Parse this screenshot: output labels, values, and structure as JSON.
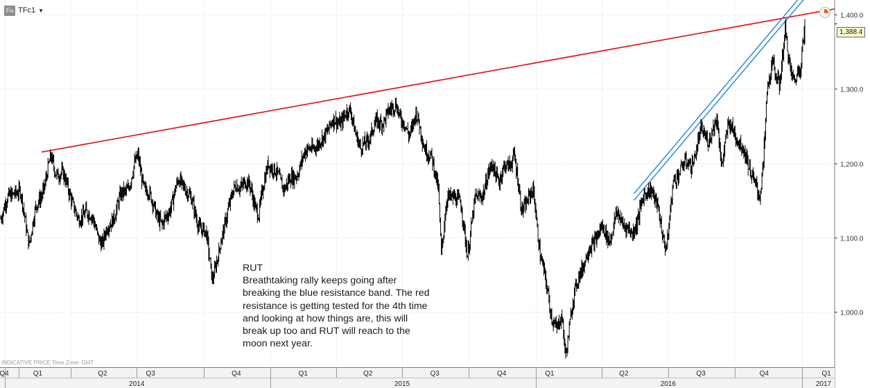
{
  "toolbar": {
    "symbol_icon": "Fu",
    "symbol": "TFc1",
    "dropdown_icon": "caret-down-icon",
    "clock_icon": "clock-icon"
  },
  "footer_note": "INDICATIVE PRICE   Time Zone: GMT",
  "annotation": {
    "title": "RUT",
    "lines": [
      "Breathtaking rally keeps going after",
      "breaking the blue resistance band. The red",
      "resistance is getting tested for the 4th time",
      "and looking at how things are, this will",
      "break up too and RUT will reach to the",
      "moon next year."
    ]
  },
  "colors": {
    "price": "#000000",
    "red_line": "#dd1f1f",
    "blue_band": "#3a8fd8",
    "grid": "#d9d9d9",
    "axis": "#444444"
  },
  "chart_data": {
    "type": "line",
    "title": "",
    "xlabel": "",
    "ylabel": "",
    "y_axis_side": "right",
    "ylim": [
      925,
      1420
    ],
    "y_ticks": [
      1000,
      1100,
      1200,
      1300,
      1400
    ],
    "y_tick_labels": [
      "1,000.0",
      "1,100.0",
      "1,200.0",
      "1,300.0",
      "1,400.0"
    ],
    "x_range": [
      "2013-12-25",
      "2017-02-15"
    ],
    "quarter_labels": [
      {
        "label": "Q4",
        "date": "2013-12-01"
      },
      {
        "label": "Q1",
        "date": "2014-02-15"
      },
      {
        "label": "Q2",
        "date": "2014-05-15"
      },
      {
        "label": "Q3",
        "date": "2014-07-20"
      },
      {
        "label": "Q4",
        "date": "2014-11-15"
      },
      {
        "label": "Q1",
        "date": "2015-02-15"
      },
      {
        "label": "Q2",
        "date": "2015-05-15"
      },
      {
        "label": "Q3",
        "date": "2015-08-15"
      },
      {
        "label": "Q4",
        "date": "2015-11-15"
      },
      {
        "label": "Q1",
        "date": "2016-01-20"
      },
      {
        "label": "Q2",
        "date": "2016-05-01"
      },
      {
        "label": "Q3",
        "date": "2016-08-15"
      },
      {
        "label": "Q4",
        "date": "2016-11-10"
      },
      {
        "label": "Q1",
        "date": "2017-02-15"
      }
    ],
    "year_labels": [
      {
        "label": "2014",
        "date": "2014-07-01"
      },
      {
        "label": "2015",
        "date": "2015-07-01"
      },
      {
        "label": "2016",
        "date": "2016-07-01"
      },
      {
        "label": "2017",
        "date": "2017-02-15"
      }
    ],
    "quarter_ticks": [
      "2014-01-01",
      "2014-04-01",
      "2014-07-01",
      "2014-10-01",
      "2015-01-01",
      "2015-04-01",
      "2015-07-01",
      "2015-10-01",
      "2016-01-01",
      "2016-04-01",
      "2016-07-01",
      "2016-10-01",
      "2017-01-01"
    ],
    "year_ticks": [
      "2014-01-01",
      "2015-01-01",
      "2016-01-01",
      "2017-01-01"
    ],
    "series": [
      {
        "values": [
          [
            "2013-12-26",
            1130
          ],
          [
            "2014-01-05",
            1150
          ],
          [
            "2014-01-14",
            1165
          ],
          [
            "2014-01-22",
            1158
          ],
          [
            "2014-02-03",
            1095
          ],
          [
            "2014-02-12",
            1135
          ],
          [
            "2014-02-25",
            1175
          ],
          [
            "2014-03-05",
            1205
          ],
          [
            "2014-03-12",
            1190
          ],
          [
            "2014-03-20",
            1185
          ],
          [
            "2014-04-01",
            1160
          ],
          [
            "2014-04-12",
            1118
          ],
          [
            "2014-04-22",
            1140
          ],
          [
            "2014-05-02",
            1120
          ],
          [
            "2014-05-15",
            1092
          ],
          [
            "2014-05-28",
            1125
          ],
          [
            "2014-06-10",
            1155
          ],
          [
            "2014-06-22",
            1175
          ],
          [
            "2014-07-03",
            1210
          ],
          [
            "2014-07-12",
            1165
          ],
          [
            "2014-07-25",
            1145
          ],
          [
            "2014-08-05",
            1112
          ],
          [
            "2014-08-15",
            1140
          ],
          [
            "2014-08-28",
            1175
          ],
          [
            "2014-09-05",
            1172
          ],
          [
            "2014-09-15",
            1145
          ],
          [
            "2014-09-25",
            1118
          ],
          [
            "2014-10-05",
            1100
          ],
          [
            "2014-10-13",
            1048
          ],
          [
            "2014-10-22",
            1075
          ],
          [
            "2014-11-03",
            1140
          ],
          [
            "2014-11-15",
            1168
          ],
          [
            "2014-11-25",
            1175
          ],
          [
            "2014-12-05",
            1165
          ],
          [
            "2014-12-16",
            1130
          ],
          [
            "2014-12-29",
            1205
          ],
          [
            "2015-01-08",
            1185
          ],
          [
            "2015-01-20",
            1170
          ],
          [
            "2015-02-01",
            1178
          ],
          [
            "2015-02-12",
            1200
          ],
          [
            "2015-02-25",
            1225
          ],
          [
            "2015-03-08",
            1220
          ],
          [
            "2015-03-18",
            1245
          ],
          [
            "2015-03-30",
            1255
          ],
          [
            "2015-04-10",
            1260
          ],
          [
            "2015-04-22",
            1270
          ],
          [
            "2015-05-05",
            1215
          ],
          [
            "2015-05-15",
            1235
          ],
          [
            "2015-05-27",
            1252
          ],
          [
            "2015-06-05",
            1260
          ],
          [
            "2015-06-15",
            1268
          ],
          [
            "2015-06-23",
            1285
          ],
          [
            "2015-06-30",
            1255
          ],
          [
            "2015-07-10",
            1240
          ],
          [
            "2015-07-20",
            1265
          ],
          [
            "2015-07-30",
            1230
          ],
          [
            "2015-08-10",
            1205
          ],
          [
            "2015-08-20",
            1170
          ],
          [
            "2015-08-24",
            1080
          ],
          [
            "2015-09-01",
            1150
          ],
          [
            "2015-09-10",
            1160
          ],
          [
            "2015-09-20",
            1140
          ],
          [
            "2015-09-29",
            1080
          ],
          [
            "2015-10-10",
            1150
          ],
          [
            "2015-10-22",
            1165
          ],
          [
            "2015-11-03",
            1200
          ],
          [
            "2015-11-12",
            1175
          ],
          [
            "2015-11-20",
            1195
          ],
          [
            "2015-12-02",
            1210
          ],
          [
            "2015-12-12",
            1140
          ],
          [
            "2015-12-29",
            1160
          ],
          [
            "2016-01-07",
            1080
          ],
          [
            "2016-01-15",
            1035
          ],
          [
            "2016-01-22",
            1000
          ],
          [
            "2016-01-30",
            975
          ],
          [
            "2016-02-06",
            990
          ],
          [
            "2016-02-11",
            945
          ],
          [
            "2016-02-20",
            1005
          ],
          [
            "2016-03-01",
            1055
          ],
          [
            "2016-03-10",
            1070
          ],
          [
            "2016-03-22",
            1100
          ],
          [
            "2016-04-01",
            1110
          ],
          [
            "2016-04-12",
            1100
          ],
          [
            "2016-04-22",
            1130
          ],
          [
            "2016-05-02",
            1120
          ],
          [
            "2016-05-12",
            1100
          ],
          [
            "2016-05-25",
            1145
          ],
          [
            "2016-06-08",
            1170
          ],
          [
            "2016-06-16",
            1140
          ],
          [
            "2016-06-24",
            1100
          ],
          [
            "2016-06-29",
            1090
          ],
          [
            "2016-07-08",
            1170
          ],
          [
            "2016-07-20",
            1200
          ],
          [
            "2016-08-01",
            1195
          ],
          [
            "2016-08-15",
            1240
          ],
          [
            "2016-08-25",
            1235
          ],
          [
            "2016-09-07",
            1255
          ],
          [
            "2016-09-12",
            1200
          ],
          [
            "2016-09-22",
            1250
          ],
          [
            "2016-10-03",
            1240
          ],
          [
            "2016-10-12",
            1215
          ],
          [
            "2016-10-22",
            1195
          ],
          [
            "2016-11-02",
            1155
          ],
          [
            "2016-11-04",
            1150
          ],
          [
            "2016-11-09",
            1205
          ],
          [
            "2016-11-14",
            1300
          ],
          [
            "2016-11-22",
            1330
          ],
          [
            "2016-12-01",
            1310
          ],
          [
            "2016-12-09",
            1375
          ],
          [
            "2016-12-15",
            1330
          ],
          [
            "2016-12-22",
            1315
          ],
          [
            "2016-12-30",
            1325
          ],
          [
            "2017-01-05",
            1388.4
          ]
        ]
      }
    ],
    "trend_lines": [
      {
        "color": "red",
        "points": [
          [
            "2014-02-20",
            1215
          ],
          [
            "2017-02-15",
            1408
          ]
        ]
      },
      {
        "color": "blue",
        "points": [
          [
            "2016-05-15",
            1150
          ],
          [
            "2017-02-15",
            1470
          ]
        ]
      },
      {
        "color": "blue",
        "points": [
          [
            "2016-05-15",
            1159
          ],
          [
            "2017-02-15",
            1479
          ]
        ]
      }
    ],
    "last_price_label": "1,388.4",
    "last_price": 1388.4
  }
}
